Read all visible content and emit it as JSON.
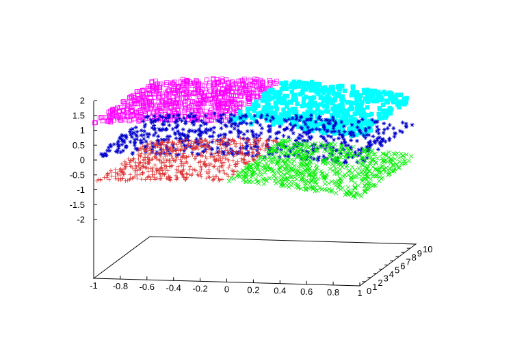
{
  "chart_data": {
    "type": "scatter",
    "dimensions": 3,
    "title": "",
    "xlabel": "",
    "ylabel": "",
    "zlabel": "",
    "legend": "none",
    "grid": false,
    "x_range": [
      -1,
      1
    ],
    "y_range": [
      0,
      10
    ],
    "z_range": [
      -2,
      2
    ],
    "x_ticks": [
      "-1",
      "-0.8",
      "-0.6",
      "-0.4",
      "-0.2",
      "0",
      "0.2",
      "0.4",
      "0.6",
      "0.8",
      "1"
    ],
    "y_ticks": [
      "0",
      "1",
      "2",
      "3",
      "4",
      "5",
      "6",
      "7",
      "8",
      "9",
      "10"
    ],
    "z_ticks": [
      "2",
      "1.5",
      "1",
      "0.5",
      "0",
      "-0.5",
      "-1",
      "-1.5",
      "-2"
    ],
    "series": [
      {
        "marker": "square-open",
        "color": "#ff00ff",
        "surface": {
          "x_range": [
            -1,
            0
          ],
          "y_range": [
            0,
            10
          ],
          "z_center": 1.0,
          "z_amplitude": 0.5
        },
        "count": 700
      },
      {
        "marker": "square-filled",
        "color": "#00ffff",
        "surface": {
          "x_range": [
            0,
            1
          ],
          "y_range": [
            0,
            10
          ],
          "z_center": 1.0,
          "z_amplitude": 0.5
        },
        "count": 560
      },
      {
        "marker": "star",
        "color": "#0000cc",
        "surface": {
          "x_range": [
            -1,
            1
          ],
          "y_range": [
            0,
            10
          ],
          "z_center": 0.0,
          "z_amplitude": 0.25
        },
        "count": 650
      },
      {
        "marker": "plus",
        "color": "#dd3333",
        "surface": {
          "x_range": [
            -1,
            0
          ],
          "y_range": [
            0,
            10
          ],
          "z_center": -1.0,
          "z_amplitude": 0.5
        },
        "count": 600
      },
      {
        "marker": "cross",
        "color": "#00ee00",
        "surface": {
          "x_range": [
            0,
            1
          ],
          "y_range": [
            0,
            10
          ],
          "z_center": -1.0,
          "z_amplitude": 0.5
        },
        "count": 650
      }
    ]
  }
}
